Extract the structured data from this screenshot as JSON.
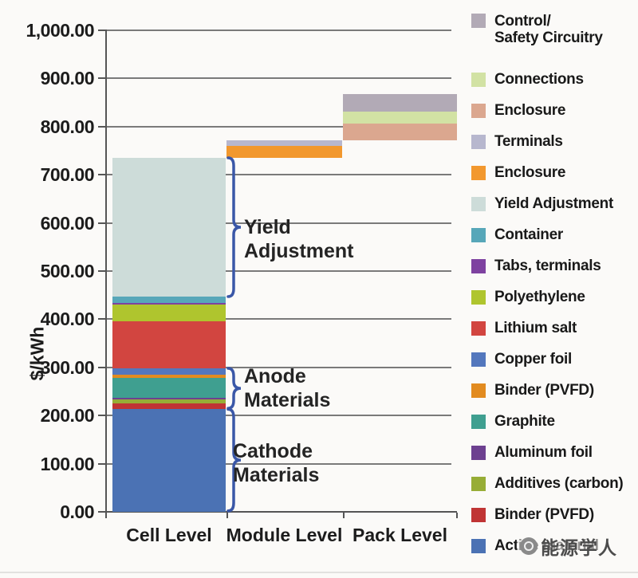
{
  "watermark": {
    "text": "能源学人"
  },
  "chart_data": {
    "type": "bar",
    "stacked": true,
    "title": "",
    "xlabel": "",
    "ylabel": "$/kWh",
    "ylim": [
      0,
      1000
    ],
    "ytick_step": 100,
    "ytick_labels": [
      "0.00",
      "100.00",
      "200.00",
      "300.00",
      "400.00",
      "500.00",
      "600.00",
      "700.00",
      "800.00",
      "900.00",
      "1,000.00"
    ],
    "grid": true,
    "legend_position": "right",
    "categories": [
      "Cell Level",
      "Module Level",
      "Pack Level"
    ],
    "segments": [
      {
        "category": "Cell Level",
        "label": "Active material",
        "color": "#4b72b4",
        "from": 0,
        "to": 214
      },
      {
        "category": "Cell Level",
        "label": "Binder (PVFD)",
        "color": "#c03434",
        "from": 214,
        "to": 225
      },
      {
        "category": "Cell Level",
        "label": "Additives (carbon)",
        "color": "#97ad36",
        "from": 225,
        "to": 233
      },
      {
        "category": "Cell Level",
        "label": "Aluminum foil",
        "color": "#6d4090",
        "from": 233,
        "to": 237
      },
      {
        "category": "Cell Level",
        "label": "Graphite",
        "color": "#3f9f90",
        "from": 237,
        "to": 278
      },
      {
        "category": "Cell Level",
        "label": "Binder (PVFD)",
        "color": "#e28b20",
        "from": 278,
        "to": 285
      },
      {
        "category": "Cell Level",
        "label": "Copper foil",
        "color": "#5377bd",
        "from": 285,
        "to": 298
      },
      {
        "category": "Cell Level",
        "label": "Lithium salt",
        "color": "#d24540",
        "from": 298,
        "to": 396
      },
      {
        "category": "Cell Level",
        "label": "Polyethylene",
        "color": "#afc52e",
        "from": 396,
        "to": 430
      },
      {
        "category": "Cell Level",
        "label": "Tabs, terminals",
        "color": "#7e42a0",
        "from": 430,
        "to": 434
      },
      {
        "category": "Cell Level",
        "label": "Container",
        "color": "#57a7b9",
        "from": 434,
        "to": 447
      },
      {
        "category": "Cell Level",
        "label": "Yield Adjustment",
        "color": "#cddcd9",
        "from": 447,
        "to": 735
      },
      {
        "category": "Module Level",
        "label": "Enclosure",
        "color": "#f2982e",
        "from": 735,
        "to": 760
      },
      {
        "category": "Module Level",
        "label": "Terminals",
        "color": "#b7b7ce",
        "from": 760,
        "to": 771
      },
      {
        "category": "Pack Level",
        "label": "Enclosure",
        "color": "#dba78f",
        "from": 771,
        "to": 806
      },
      {
        "category": "Pack Level",
        "label": "Connections",
        "color": "#d2e2a4",
        "from": 806,
        "to": 831
      },
      {
        "category": "Pack Level",
        "label": "Control/Safety Circuitry",
        "color": "#b2aab6",
        "from": 831,
        "to": 867
      }
    ],
    "annotations": [
      {
        "lines": "Yield\nAdjustment",
        "brace_from": 447,
        "brace_to": 735
      },
      {
        "lines": "Anode\nMaterials",
        "brace_from": 215,
        "brace_to": 298
      },
      {
        "lines": "Cathode\nMaterials",
        "brace_from": 2,
        "brace_to": 213
      }
    ],
    "legend": [
      {
        "label": "Control/\nSafety Circuitry",
        "color": "#b2aab6"
      },
      {
        "label": "Connections",
        "color": "#d2e2a4"
      },
      {
        "label": "Enclosure",
        "color": "#dba78f"
      },
      {
        "label": "Terminals",
        "color": "#b7b7ce"
      },
      {
        "label": "Enclosure",
        "color": "#f2982e"
      },
      {
        "label": "Yield Adjustment",
        "color": "#cddcd9"
      },
      {
        "label": "Container",
        "color": "#57a7b9"
      },
      {
        "label": "Tabs, terminals",
        "color": "#7e42a0"
      },
      {
        "label": "Polyethylene",
        "color": "#afc52e"
      },
      {
        "label": "Lithium salt",
        "color": "#d24540"
      },
      {
        "label": "Copper foil",
        "color": "#5377bd"
      },
      {
        "label": "Binder (PVFD)",
        "color": "#e28b20"
      },
      {
        "label": "Graphite",
        "color": "#3f9f90"
      },
      {
        "label": "Aluminum foil",
        "color": "#6d4090"
      },
      {
        "label": "Additives (carbon)",
        "color": "#97ad36"
      },
      {
        "label": "Binder (PVFD)",
        "color": "#c03434"
      },
      {
        "label": "Active material",
        "color": "#4b72b4"
      }
    ],
    "brace_color": "#3a57a7"
  }
}
